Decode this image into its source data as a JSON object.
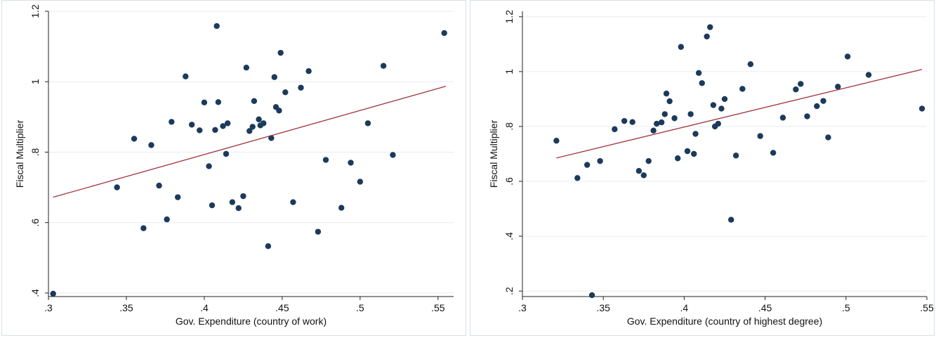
{
  "colors": {
    "point": "#1b3a5c",
    "fit_line": "#a0353f",
    "grid": "#e7ecf0",
    "background": "#ffffff"
  },
  "chart_data": [
    {
      "type": "scatter",
      "xlabel": "Gov. Expenditure (country of work)",
      "ylabel": "Fiscal Multiplier",
      "xlim": [
        0.3,
        0.56
      ],
      "ylim": [
        0.39,
        1.2
      ],
      "xticks": [
        ".3",
        ".35",
        ".4",
        ".45",
        ".5",
        ".55"
      ],
      "yticks": [
        ".4",
        ".6",
        ".8",
        "1",
        "1.2"
      ],
      "grid": true,
      "fit_line": {
        "x": [
          0.303,
          0.555
        ],
        "y": [
          0.672,
          0.987
        ]
      },
      "points": [
        [
          0.303,
          0.398
        ],
        [
          0.344,
          0.7
        ],
        [
          0.355,
          0.838
        ],
        [
          0.361,
          0.584
        ],
        [
          0.366,
          0.82
        ],
        [
          0.371,
          0.705
        ],
        [
          0.376,
          0.609
        ],
        [
          0.379,
          0.886
        ],
        [
          0.383,
          0.672
        ],
        [
          0.388,
          1.015
        ],
        [
          0.392,
          0.878
        ],
        [
          0.397,
          0.862
        ],
        [
          0.4,
          0.941
        ],
        [
          0.403,
          0.76
        ],
        [
          0.405,
          0.649
        ],
        [
          0.407,
          0.863
        ],
        [
          0.408,
          1.158
        ],
        [
          0.409,
          0.942
        ],
        [
          0.412,
          0.874
        ],
        [
          0.414,
          0.795
        ],
        [
          0.415,
          0.882
        ],
        [
          0.418,
          0.658
        ],
        [
          0.422,
          0.641
        ],
        [
          0.425,
          0.675
        ],
        [
          0.427,
          1.04
        ],
        [
          0.429,
          0.86
        ],
        [
          0.431,
          0.872
        ],
        [
          0.432,
          0.945
        ],
        [
          0.435,
          0.893
        ],
        [
          0.436,
          0.876
        ],
        [
          0.438,
          0.882
        ],
        [
          0.441,
          0.533
        ],
        [
          0.443,
          0.84
        ],
        [
          0.445,
          1.013
        ],
        [
          0.446,
          0.928
        ],
        [
          0.448,
          0.918
        ],
        [
          0.449,
          1.082
        ],
        [
          0.452,
          0.97
        ],
        [
          0.457,
          0.658
        ],
        [
          0.462,
          0.983
        ],
        [
          0.467,
          1.03
        ],
        [
          0.473,
          0.574
        ],
        [
          0.478,
          0.778
        ],
        [
          0.488,
          0.642
        ],
        [
          0.494,
          0.77
        ],
        [
          0.5,
          0.716
        ],
        [
          0.505,
          0.882
        ],
        [
          0.515,
          1.045
        ],
        [
          0.521,
          0.792
        ],
        [
          0.554,
          1.138
        ]
      ]
    },
    {
      "type": "scatter",
      "xlabel": "Gov. Expenditure (country of highest degree)",
      "ylabel": "Fiscal Multiplier",
      "xlim": [
        0.3,
        0.55
      ],
      "ylim": [
        0.18,
        1.22
      ],
      "xticks": [
        ".3",
        ".35",
        ".4",
        ".45",
        ".5",
        ".55"
      ],
      "yticks": [
        ".2",
        ".4",
        ".6",
        ".8",
        "1",
        "1.2"
      ],
      "grid": true,
      "fit_line": {
        "x": [
          0.321,
          0.547
        ],
        "y": [
          0.685,
          1.008
        ]
      },
      "points": [
        [
          0.321,
          0.748
        ],
        [
          0.334,
          0.612
        ],
        [
          0.34,
          0.66
        ],
        [
          0.343,
          0.185
        ],
        [
          0.348,
          0.674
        ],
        [
          0.357,
          0.79
        ],
        [
          0.363,
          0.82
        ],
        [
          0.368,
          0.816
        ],
        [
          0.372,
          0.638
        ],
        [
          0.375,
          0.622
        ],
        [
          0.378,
          0.674
        ],
        [
          0.381,
          0.785
        ],
        [
          0.383,
          0.81
        ],
        [
          0.386,
          0.815
        ],
        [
          0.388,
          0.845
        ],
        [
          0.389,
          0.92
        ],
        [
          0.391,
          0.892
        ],
        [
          0.394,
          0.83
        ],
        [
          0.396,
          0.684
        ],
        [
          0.398,
          1.09
        ],
        [
          0.402,
          0.71
        ],
        [
          0.404,
          0.845
        ],
        [
          0.406,
          0.7
        ],
        [
          0.407,
          0.773
        ],
        [
          0.409,
          0.995
        ],
        [
          0.411,
          0.958
        ],
        [
          0.414,
          1.128
        ],
        [
          0.416,
          1.162
        ],
        [
          0.418,
          0.878
        ],
        [
          0.419,
          0.8
        ],
        [
          0.421,
          0.81
        ],
        [
          0.423,
          0.865
        ],
        [
          0.425,
          0.9
        ],
        [
          0.429,
          0.46
        ],
        [
          0.432,
          0.694
        ],
        [
          0.436,
          0.937
        ],
        [
          0.441,
          1.027
        ],
        [
          0.447,
          0.765
        ],
        [
          0.455,
          0.704
        ],
        [
          0.461,
          0.832
        ],
        [
          0.469,
          0.935
        ],
        [
          0.472,
          0.955
        ],
        [
          0.476,
          0.837
        ],
        [
          0.482,
          0.874
        ],
        [
          0.486,
          0.893
        ],
        [
          0.489,
          0.76
        ],
        [
          0.495,
          0.945
        ],
        [
          0.501,
          1.055
        ],
        [
          0.514,
          0.988
        ],
        [
          0.547,
          0.865
        ]
      ]
    }
  ]
}
